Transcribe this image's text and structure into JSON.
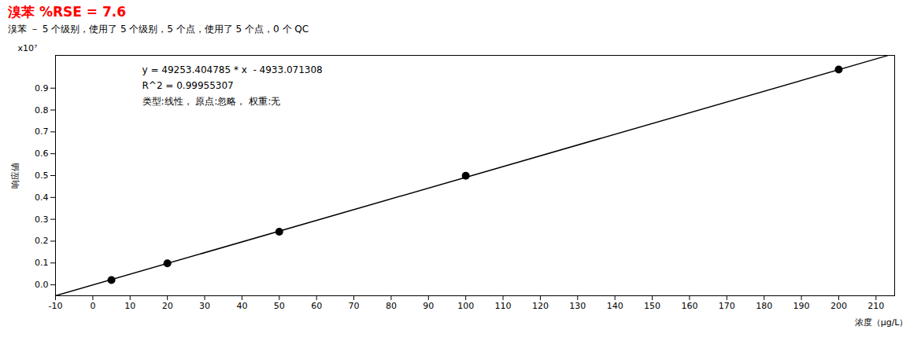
{
  "chart_data": {
    "type": "scatter",
    "title": "溴苯    %RSE = 7.6",
    "title_color": "#FF0000",
    "subtitle": "溴苯 － 5 个级别，使用了 5 个级别，5 个点，使用了 5 个点，0 个 QC",
    "xlabel": "浓度（μg/L）",
    "ylabel": "响应値",
    "annotations": [
      "x10⁷",
      "y = 49253.404785 * x  - 4933.071308",
      "R^2 = 0.99955307",
      "类型:线性， 原点:忽略， 权重:无"
    ],
    "x": [
      5,
      20,
      50,
      100,
      200
    ],
    "values": [
      0.0221337,
      0.0980135,
      0.2427717,
      0.4990808,
      0.9855748
    ],
    "color": "#000000",
    "fit_line": {
      "x": [
        -10,
        213
      ],
      "values": [
        -0.0497467119158,
        1.0486042147897
      ],
      "color": "#000000"
    },
    "xlim": [
      -10,
      215
    ],
    "ylim": [
      -0.05,
      1.05
    ],
    "xticks": [
      -10,
      0,
      10,
      20,
      30,
      40,
      50,
      60,
      70,
      80,
      90,
      100,
      110,
      120,
      130,
      140,
      150,
      160,
      170,
      180,
      190,
      200,
      210
    ],
    "yticks": [
      {
        "value": 0,
        "label": "0.0"
      },
      0.1,
      0.2,
      0.3,
      0.4,
      0.5,
      0.6,
      0.7,
      0.8,
      0.9
    ],
    "grid": false
  }
}
